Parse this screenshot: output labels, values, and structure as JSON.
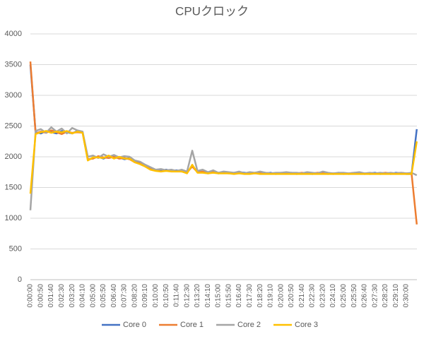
{
  "chart_data": {
    "type": "line",
    "title": "CPUクロック",
    "categories": [
      "0:00:00",
      null,
      "0:00:50",
      null,
      "0:01:40",
      null,
      "0:02:30",
      null,
      "0:03:20",
      null,
      "0:04:10",
      null,
      "0:05:00",
      null,
      "0:05:50",
      null,
      "0:06:40",
      null,
      "0:07:30",
      null,
      "0:08:20",
      null,
      "0:09:10",
      null,
      "0:10:00",
      null,
      "0:10:50",
      null,
      "0:11:40",
      null,
      "0:12:30",
      null,
      "0:13:20",
      null,
      "0:14:10",
      null,
      "0:15:00",
      null,
      "0:15:50",
      null,
      "0:16:40",
      null,
      "0:17:30",
      null,
      "0:18:20",
      null,
      "0:19:10",
      null,
      "0:20:00",
      null,
      "0:20:50",
      null,
      "0:21:40",
      null,
      "0:22:30",
      null,
      "0:23:20",
      null,
      "0:24:10",
      null,
      "0:25:00",
      null,
      "0:25:50",
      null,
      "0:26:40",
      null,
      "0:27:30",
      null,
      "0:28:20",
      null,
      "0:29:10",
      null,
      "0:30:00",
      null,
      null
    ],
    "series": [
      {
        "name": "Core 0",
        "color": "#4472c4",
        "values": [
          3500,
          2400,
          2380,
          2420,
          2400,
          2380,
          2420,
          2400,
          2380,
          2420,
          2400,
          1950,
          1980,
          2000,
          1970,
          2010,
          1980,
          1990,
          1960,
          1980,
          1920,
          1900,
          1850,
          1810,
          1780,
          1770,
          1790,
          1770,
          1780,
          1760,
          1740,
          1850,
          1760,
          1750,
          1740,
          1760,
          1730,
          1750,
          1740,
          1730,
          1750,
          1740,
          1730,
          1740,
          1750,
          1730,
          1740,
          1720,
          1740,
          1730,
          1740,
          1720,
          1730,
          1740,
          1720,
          1730,
          1750,
          1730,
          1720,
          1740,
          1730,
          1720,
          1730,
          1740,
          1720,
          1730,
          1740,
          1720,
          1730,
          1720,
          1740,
          1730,
          1720,
          1720,
          2450
        ]
      },
      {
        "name": "Core 1",
        "color": "#ed7d31",
        "values": [
          3550,
          2380,
          2410,
          2390,
          2430,
          2400,
          2370,
          2410,
          2390,
          2400,
          2390,
          1960,
          1970,
          2010,
          1990,
          1980,
          2000,
          1970,
          1980,
          1960,
          1910,
          1890,
          1860,
          1800,
          1790,
          1760,
          1780,
          1780,
          1770,
          1770,
          1750,
          1840,
          1750,
          1760,
          1730,
          1750,
          1740,
          1740,
          1730,
          1740,
          1740,
          1730,
          1740,
          1730,
          1740,
          1740,
          1730,
          1730,
          1730,
          1740,
          1730,
          1730,
          1740,
          1730,
          1730,
          1740,
          1740,
          1720,
          1730,
          1730,
          1720,
          1730,
          1740,
          1730,
          1730,
          1720,
          1730,
          1730,
          1740,
          1730,
          1730,
          1740,
          1730,
          1730,
          900
        ]
      },
      {
        "name": "Core 2",
        "color": "#a5a5a5",
        "values": [
          1130,
          2420,
          2450,
          2390,
          2480,
          2410,
          2460,
          2380,
          2470,
          2430,
          2410,
          2000,
          2020,
          1980,
          2040,
          2000,
          2030,
          1990,
          2010,
          2000,
          1940,
          1920,
          1870,
          1830,
          1790,
          1800,
          1780,
          1790,
          1770,
          1790,
          1760,
          2100,
          1770,
          1790,
          1750,
          1780,
          1740,
          1760,
          1750,
          1740,
          1760,
          1730,
          1750,
          1740,
          1760,
          1740,
          1730,
          1740,
          1740,
          1750,
          1740,
          1740,
          1730,
          1750,
          1740,
          1730,
          1760,
          1740,
          1730,
          1740,
          1740,
          1730,
          1740,
          1750,
          1730,
          1740,
          1730,
          1740,
          1730,
          1740,
          1730,
          1740,
          1730,
          1740,
          1700
        ]
      },
      {
        "name": "Core 3",
        "color": "#ffc000",
        "values": [
          1400,
          2370,
          2400,
          2420,
          2390,
          2410,
          2400,
          2420,
          2380,
          2410,
          2390,
          1940,
          1990,
          1990,
          1980,
          2020,
          1970,
          2000,
          1970,
          1970,
          1910,
          1880,
          1840,
          1790,
          1770,
          1760,
          1770,
          1760,
          1760,
          1760,
          1730,
          1870,
          1740,
          1740,
          1730,
          1740,
          1730,
          1730,
          1730,
          1720,
          1730,
          1720,
          1720,
          1730,
          1720,
          1720,
          1720,
          1720,
          1720,
          1720,
          1720,
          1720,
          1720,
          1720,
          1720,
          1720,
          1720,
          1720,
          1720,
          1720,
          1720,
          1720,
          1720,
          1720,
          1720,
          1720,
          1720,
          1720,
          1720,
          1720,
          1720,
          1720,
          1720,
          1720,
          2250
        ]
      }
    ],
    "ylim": [
      0,
      4000
    ],
    "yticks": [
      0,
      500,
      1000,
      1500,
      2000,
      2500,
      3000,
      3500,
      4000
    ],
    "grid": true,
    "legend": "bottom"
  }
}
